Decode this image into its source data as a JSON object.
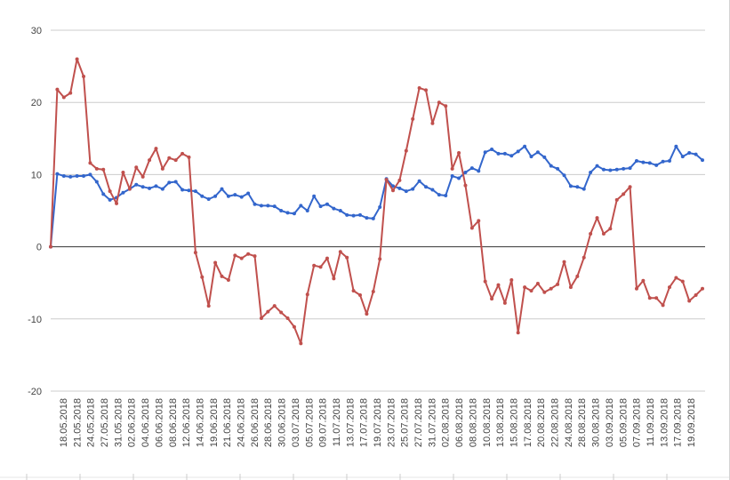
{
  "chart_data": {
    "type": "line",
    "title": "",
    "xlabel": "",
    "ylabel": "",
    "ylim": [
      -20,
      30
    ],
    "yticks": [
      -20,
      -10,
      0,
      10,
      20,
      30
    ],
    "grid": true,
    "legend": "none",
    "x_labels": [
      "18.05.2018",
      "21.05.2018",
      "24.05.2018",
      "27.05.2018",
      "31.05.2018",
      "02.06.2018",
      "04.06.2018",
      "06.06.2018",
      "08.06.2018",
      "12.06.2018",
      "14.06.2018",
      "19.06.2018",
      "21.06.2018",
      "24.06.2018",
      "26.06.2018",
      "28.06.2018",
      "30.06.2018",
      "03.07.2018",
      "05.07.2018",
      "09.07.2018",
      "11.07.2018",
      "13.07.2018",
      "17.07.2018",
      "19.07.2018",
      "23.07.2018",
      "25.07.2018",
      "27.07.2018",
      "31.07.2018",
      "02.08.2018",
      "06.08.2018",
      "08.08.2018",
      "10.08.2018",
      "13.08.2018",
      "15.08.2018",
      "17.08.2018",
      "20.08.2018",
      "22.08.2018",
      "24.08.2018",
      "28.08.2018",
      "30.08.2018",
      "03.09.2018",
      "05.09.2018",
      "07.09.2018",
      "11.09.2018",
      "13.09.2018",
      "17.09.2018",
      "19.09.2018"
    ],
    "series": [
      {
        "color": "#3366cc",
        "values": [
          0,
          10.1,
          9.8,
          9.7,
          9.8,
          9.8,
          10.0,
          9.0,
          7.3,
          6.5,
          6.8,
          7.5,
          8.0,
          8.6,
          8.3,
          8.1,
          8.4,
          8.0,
          8.9,
          9.0,
          7.9,
          7.8,
          7.7,
          7.0,
          6.6,
          7.0,
          8.0,
          7.0,
          7.2,
          6.9,
          7.4,
          5.9,
          5.7,
          5.7,
          5.6,
          5.0,
          4.7,
          4.6,
          5.7,
          5.0,
          7.0,
          5.6,
          5.9,
          5.3,
          5.0,
          4.4,
          4.3,
          4.4,
          4.0,
          3.9,
          5.5,
          9.4,
          8.4,
          8.1,
          7.7,
          8.0,
          9.1,
          8.3,
          7.9,
          7.2,
          7.1,
          9.8,
          9.5,
          10.3,
          10.9,
          10.5,
          13.1,
          13.5,
          12.9,
          12.9,
          12.6,
          13.2,
          13.9,
          12.5,
          13.1,
          12.4,
          11.2,
          10.8,
          9.9,
          8.4,
          8.3,
          8.0,
          10.3,
          11.2,
          10.7,
          10.6,
          10.7,
          10.8,
          10.9,
          11.9,
          11.7,
          11.6,
          11.3,
          11.8,
          11.9,
          13.9,
          12.5,
          13.0,
          12.8,
          12.0
        ]
      },
      {
        "color": "#c0504d",
        "values": [
          0,
          21.8,
          20.7,
          21.3,
          26.0,
          23.6,
          11.6,
          10.8,
          10.7,
          7.7,
          6.0,
          10.3,
          8.0,
          11.0,
          9.7,
          12.0,
          13.6,
          10.8,
          12.3,
          12.0,
          12.9,
          12.4,
          -0.8,
          -4.2,
          -8.2,
          -2.2,
          -4.1,
          -4.6,
          -1.2,
          -1.6,
          -1.0,
          -1.3,
          -9.9,
          -9.0,
          -8.2,
          -9.1,
          -9.9,
          -11.1,
          -13.4,
          -6.6,
          -2.6,
          -2.8,
          -1.6,
          -4.4,
          -0.7,
          -1.5,
          -6.1,
          -6.7,
          -9.3,
          -6.2,
          -1.7,
          9.3,
          7.8,
          9.2,
          13.3,
          17.7,
          22.0,
          21.7,
          17.1,
          20.0,
          19.5,
          10.8,
          13.0,
          8.5,
          2.6,
          3.6,
          -4.8,
          -7.2,
          -5.3,
          -7.8,
          -4.6,
          -11.9,
          -5.6,
          -6.1,
          -5.1,
          -6.3,
          -5.8,
          -5.2,
          -2.1,
          -5.6,
          -4.1,
          -1.5,
          1.8,
          4.0,
          1.8,
          2.5,
          6.5,
          7.3,
          8.3,
          -5.8,
          -4.7,
          -7.1,
          -7.1,
          -8.1,
          -5.6,
          -4.3,
          -4.8,
          -7.5,
          -6.7,
          -5.8
        ]
      }
    ]
  }
}
